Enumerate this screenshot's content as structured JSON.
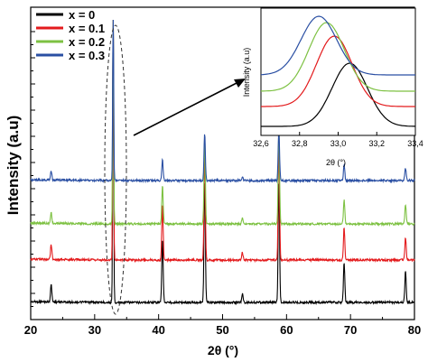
{
  "chart_data": [
    {
      "type": "line",
      "xlabel": "2θ (°)",
      "ylabel": "Intensity (a.u)",
      "xlim": [
        20,
        80
      ],
      "x_ticks": [
        20,
        30,
        40,
        50,
        60,
        70,
        80
      ],
      "y_tick_labels": "none",
      "grid": false,
      "legend_placement": "top-left",
      "series": [
        {
          "name": "x = 0",
          "color": "#000000",
          "peaks": [
            {
              "x": 23.2,
              "h": 0.06
            },
            {
              "x": 32.9,
              "h": 1.0
            },
            {
              "x": 40.6,
              "h": 0.22
            },
            {
              "x": 47.2,
              "h": 0.42
            },
            {
              "x": 53.1,
              "h": 0.03
            },
            {
              "x": 58.8,
              "h": 0.42
            },
            {
              "x": 69.0,
              "h": 0.14
            },
            {
              "x": 78.6,
              "h": 0.11
            }
          ]
        },
        {
          "name": "x = 0.1",
          "color": "#e31a1c",
          "peaks": [
            {
              "x": 23.2,
              "h": 0.06
            },
            {
              "x": 32.9,
              "h": 1.0
            },
            {
              "x": 40.6,
              "h": 0.22
            },
            {
              "x": 47.2,
              "h": 0.42
            },
            {
              "x": 53.1,
              "h": 0.03
            },
            {
              "x": 58.8,
              "h": 0.46
            },
            {
              "x": 69.0,
              "h": 0.13
            },
            {
              "x": 78.6,
              "h": 0.09
            }
          ]
        },
        {
          "name": "x = 0.2",
          "color": "#7dc142",
          "peaks": [
            {
              "x": 23.2,
              "h": 0.05
            },
            {
              "x": 32.9,
              "h": 1.0
            },
            {
              "x": 40.6,
              "h": 0.18
            },
            {
              "x": 47.2,
              "h": 0.4
            },
            {
              "x": 53.1,
              "h": 0.03
            },
            {
              "x": 58.8,
              "h": 0.45
            },
            {
              "x": 69.0,
              "h": 0.11
            },
            {
              "x": 78.6,
              "h": 0.09
            }
          ]
        },
        {
          "name": "x = 0.3",
          "color": "#2a4fa3",
          "peaks": [
            {
              "x": 23.2,
              "h": 0.05
            },
            {
              "x": 32.9,
              "h": 1.0
            },
            {
              "x": 40.6,
              "h": 0.12
            },
            {
              "x": 47.2,
              "h": 0.27
            },
            {
              "x": 53.1,
              "h": 0.02
            },
            {
              "x": 58.8,
              "h": 0.3
            },
            {
              "x": 69.0,
              "h": 0.09
            },
            {
              "x": 78.6,
              "h": 0.07
            }
          ]
        }
      ]
    },
    {
      "type": "line",
      "inset": true,
      "xlabel": "2θ (°)",
      "ylabel": "Intensity (a.u)",
      "xlim": [
        32.6,
        33.4
      ],
      "x_ticks": [
        "32,6",
        "32,8",
        "33,0",
        "33,2",
        "33,4"
      ],
      "series": [
        {
          "name": "x = 0",
          "color": "#000000",
          "peak_x": 33.06
        },
        {
          "name": "x = 0.1",
          "color": "#e31a1c",
          "peak_x": 32.98
        },
        {
          "name": "x = 0.2",
          "color": "#7dc142",
          "peak_x": 32.94
        },
        {
          "name": "x = 0.3",
          "color": "#2a4fa3",
          "peak_x": 32.9
        }
      ]
    }
  ]
}
